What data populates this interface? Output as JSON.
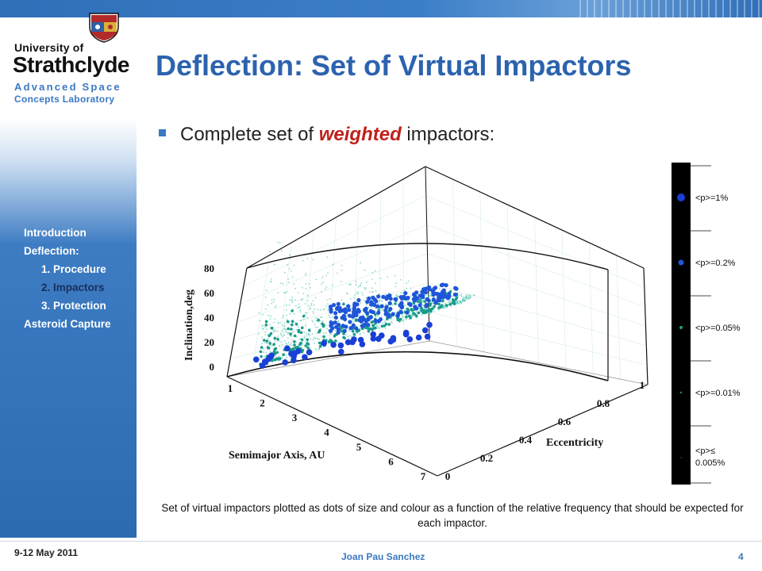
{
  "logo": {
    "line1": "University of",
    "line2": "Strathclyde",
    "line3": "Advanced Space",
    "line4": "Concepts Laboratory"
  },
  "title": "Deflection: Set of Virtual Impactors",
  "bullet": {
    "before": "Complete set of ",
    "emphasis": "weighted",
    "after": " impactors:"
  },
  "nav": [
    {
      "label": "Introduction",
      "level": 0,
      "active": false
    },
    {
      "label": "Deflection:",
      "level": 0,
      "active": false
    },
    {
      "label": "1. Procedure",
      "level": 1,
      "active": false
    },
    {
      "label": "2. Impactors",
      "level": 1,
      "active": true
    },
    {
      "label": "3. Protection",
      "level": 1,
      "active": false
    },
    {
      "label": "Asteroid Capture",
      "level": 0,
      "active": false
    }
  ],
  "chart_data": {
    "type": "scatter",
    "zlabel": "Inclination,deg",
    "xlabel": "Semimajor Axis, AU",
    "ylabel": "Eccentricity",
    "z_ticks": [
      "0",
      "20",
      "40",
      "60",
      "80"
    ],
    "x_ticks": [
      "1",
      "2",
      "3",
      "4",
      "5",
      "6",
      "7"
    ],
    "y_ticks": [
      "0",
      "0.2",
      "0.4",
      "0.6",
      "0.8",
      "1"
    ],
    "x_range": [
      1,
      7
    ],
    "y_range": [
      0,
      1
    ],
    "z_range": [
      0,
      90
    ],
    "grid": true,
    "legend": [
      {
        "label": "<p>=1%",
        "color": "#1a3fd6"
      },
      {
        "label": "<p>=0.2%",
        "color": "#1f55d8"
      },
      {
        "label": "<p>=0.05%",
        "color": "#1aa080"
      },
      {
        "label": "<p>=0.01%",
        "color": "#1e8c84"
      },
      {
        "label": "<p>≤ 0.005%",
        "color": "#2a9a8a"
      }
    ]
  },
  "caption": "Set of virtual impactors plotted as dots of size and colour as a function of the relative frequency that should be expected for each impactor.",
  "footer": {
    "date": "9-12 May 2011",
    "author": "Joan Pau Sanchez",
    "page": "4"
  }
}
